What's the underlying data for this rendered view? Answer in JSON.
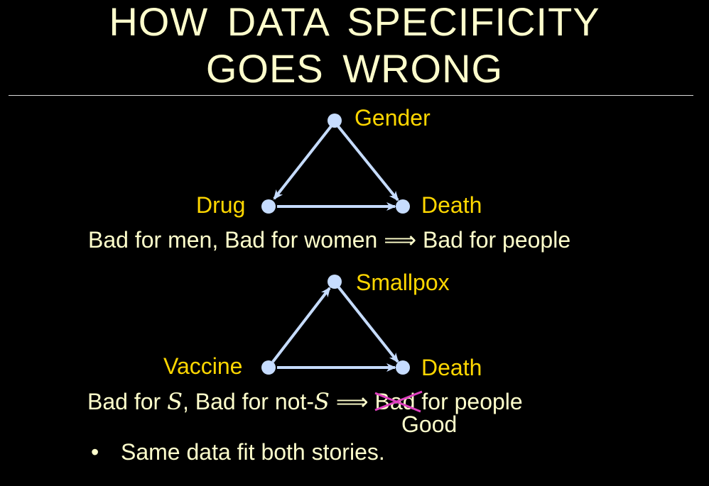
{
  "title": {
    "line1": "HOW DATA SPECIFICITY",
    "line2": "GOES WRONG"
  },
  "graph1": {
    "nodes": {
      "top": "Gender",
      "left": "Drug",
      "right": "Death"
    },
    "caption": "Bad for men, Bad for women ⟹ Bad for people"
  },
  "graph2": {
    "nodes": {
      "top": "Smallpox",
      "left": "Vaccine",
      "right": "Death"
    },
    "caption": {
      "part1": "Bad for ",
      "sym1": "S",
      "part2": ", Bad for not-",
      "sym2": "S",
      "arrow": " ⟹ ",
      "struck": "Bad",
      "part3": " for people",
      "correction": "Good"
    }
  },
  "bullet": {
    "marker": "•",
    "text": "Same data fit both stories."
  },
  "colors": {
    "title": "#ffffcc",
    "node_label": "#ffd700",
    "edge": "#c6dcff",
    "strike": "#e040c0"
  }
}
